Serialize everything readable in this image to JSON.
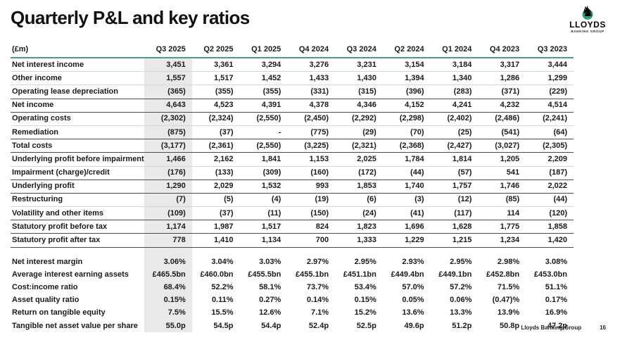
{
  "page": {
    "title": "Quarterly P&L and key ratios",
    "footer": {
      "company": "Lloyds Banking Group",
      "page_number": "16"
    },
    "logo": {
      "name": "LLOYDS",
      "subtitle": "BANKING GROUP",
      "icon": "black-horse-on-green-circle"
    }
  },
  "colors": {
    "accent_green": "#47a182",
    "logo_green": "#2f9e77",
    "highlight_column_bg": "#e9e9e9",
    "rule_strong": "#4c4c4c",
    "rule_light": "#d8d8d8",
    "text": "#1a1a1a"
  },
  "table": {
    "unit_label": "(£m)",
    "columns": [
      "Q3 2025",
      "Q2 2025",
      "Q1 2025",
      "Q4 2024",
      "Q3 2024",
      "Q2 2024",
      "Q1 2024",
      "Q4 2023",
      "Q3 2023"
    ],
    "highlighted_column": "Q3 2025",
    "pnl_rows": [
      {
        "label": "Net interest income",
        "rule": "none",
        "values": [
          "3,451",
          "3,361",
          "3,294",
          "3,276",
          "3,231",
          "3,154",
          "3,184",
          "3,317",
          "3,444"
        ]
      },
      {
        "label": "Other income",
        "rule": "light",
        "values": [
          "1,557",
          "1,517",
          "1,452",
          "1,433",
          "1,430",
          "1,394",
          "1,340",
          "1,286",
          "1,299"
        ]
      },
      {
        "label": "Operating lease depreciation",
        "rule": "light",
        "values": [
          "(365)",
          "(355)",
          "(355)",
          "(331)",
          "(315)",
          "(396)",
          "(283)",
          "(371)",
          "(229)"
        ]
      },
      {
        "label": "Net income",
        "rule": "strong",
        "values": [
          "4,643",
          "4,523",
          "4,391",
          "4,378",
          "4,346",
          "4,152",
          "4,241",
          "4,232",
          "4,514"
        ]
      },
      {
        "label": "Operating costs",
        "rule": "strong",
        "values": [
          "(2,302)",
          "(2,324)",
          "(2,550)",
          "(2,450)",
          "(2,292)",
          "(2,298)",
          "(2,402)",
          "(2,486)",
          "(2,241)"
        ]
      },
      {
        "label": "Remediation",
        "rule": "light",
        "values": [
          "(875)",
          "(37)",
          "-",
          "(775)",
          "(29)",
          "(70)",
          "(25)",
          "(541)",
          "(64)"
        ]
      },
      {
        "label": "Total costs",
        "rule": "strong",
        "values": [
          "(3,177)",
          "(2,361)",
          "(2,550)",
          "(3,225)",
          "(2,321)",
          "(2,368)",
          "(2,427)",
          "(3,027)",
          "(2,305)"
        ]
      },
      {
        "label": "Underlying profit before impairment",
        "rule": "strong",
        "values": [
          "1,466",
          "2,162",
          "1,841",
          "1,153",
          "2,025",
          "1,784",
          "1,814",
          "1,205",
          "2,209"
        ]
      },
      {
        "label": "Impairment (charge)/credit",
        "rule": "light",
        "values": [
          "(176)",
          "(133)",
          "(309)",
          "(160)",
          "(172)",
          "(44)",
          "(57)",
          "541",
          "(187)"
        ]
      },
      {
        "label": "Underlying profit",
        "rule": "strong",
        "values": [
          "1,290",
          "2,029",
          "1,532",
          "993",
          "1,853",
          "1,740",
          "1,757",
          "1,746",
          "2,022"
        ]
      },
      {
        "label": "Restructuring",
        "rule": "strong",
        "values": [
          "(7)",
          "(5)",
          "(4)",
          "(19)",
          "(6)",
          "(3)",
          "(12)",
          "(85)",
          "(44)"
        ]
      },
      {
        "label": "Volatility and other items",
        "rule": "light",
        "values": [
          "(109)",
          "(37)",
          "(11)",
          "(150)",
          "(24)",
          "(41)",
          "(117)",
          "114",
          "(120)"
        ]
      },
      {
        "label": "Statutory profit before tax",
        "rule": "strong",
        "values": [
          "1,174",
          "1,987",
          "1,517",
          "824",
          "1,823",
          "1,696",
          "1,628",
          "1,775",
          "1,858"
        ]
      },
      {
        "label": "Statutory profit after tax",
        "rule": "strong",
        "values": [
          "778",
          "1,410",
          "1,134",
          "700",
          "1,333",
          "1,229",
          "1,215",
          "1,234",
          "1,420"
        ]
      }
    ],
    "ratio_rows": [
      {
        "label": "Net interest margin",
        "values": [
          "3.06%",
          "3.04%",
          "3.03%",
          "2.97%",
          "2.95%",
          "2.93%",
          "2.95%",
          "2.98%",
          "3.08%"
        ]
      },
      {
        "label": "Average interest earning assets",
        "values": [
          "£465.5bn",
          "£460.0bn",
          "£455.5bn",
          "£455.1bn",
          "£451.1bn",
          "£449.4bn",
          "£449.1bn",
          "£452.8bn",
          "£453.0bn"
        ]
      },
      {
        "label": "Cost:income ratio",
        "values": [
          "68.4%",
          "52.2%",
          "58.1%",
          "73.7%",
          "53.4%",
          "57.0%",
          "57.2%",
          "71.5%",
          "51.1%"
        ]
      },
      {
        "label": "Asset quality ratio",
        "values": [
          "0.15%",
          "0.11%",
          "0.27%",
          "0.14%",
          "0.15%",
          "0.05%",
          "0.06%",
          "(0.47)%",
          "0.17%"
        ]
      },
      {
        "label": "Return on tangible equity",
        "values": [
          "7.5%",
          "15.5%",
          "12.6%",
          "7.1%",
          "15.2%",
          "13.6%",
          "13.3%",
          "13.9%",
          "16.9%"
        ]
      },
      {
        "label": "Tangible net asset value per share",
        "values": [
          "55.0p",
          "54.5p",
          "54.4p",
          "52.4p",
          "52.5p",
          "49.6p",
          "51.2p",
          "50.8p",
          "47.2p"
        ]
      }
    ]
  }
}
